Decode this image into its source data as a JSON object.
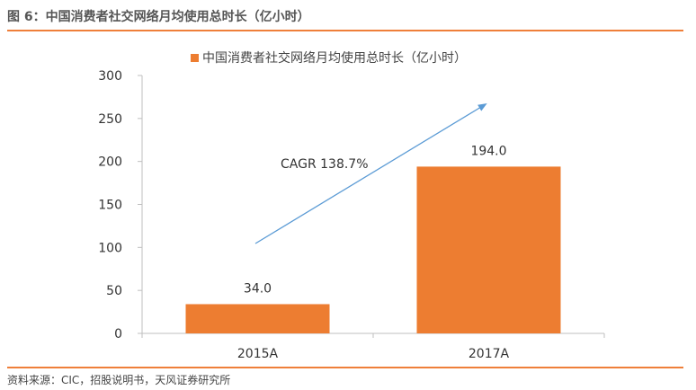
{
  "figure_title": "图 6：中国消费者社交网络月均使用总时长（亿小时）",
  "source_note": "资料来源：CIC，招股说明书，天风证券研究所",
  "colors": {
    "accent": "#ED7D31",
    "rule": "#EF7F3A",
    "arrow": "#5B9BD5",
    "axis": "#BFBFBF"
  },
  "chart_data": {
    "type": "bar",
    "categories": [
      "2015A",
      "2017A"
    ],
    "series": [
      {
        "name": "中国消费者社交网络月均使用总时长（亿小时）",
        "values": [
          34.0,
          194.0
        ]
      }
    ],
    "data_labels": [
      "34.0",
      "194.0"
    ],
    "ylim": [
      0,
      300
    ],
    "yticks": [
      0,
      50,
      100,
      150,
      200,
      250,
      300
    ],
    "grid": false,
    "legend_position": "top",
    "annotation": {
      "text": "CAGR 138.7%",
      "shape": "arrow"
    }
  }
}
